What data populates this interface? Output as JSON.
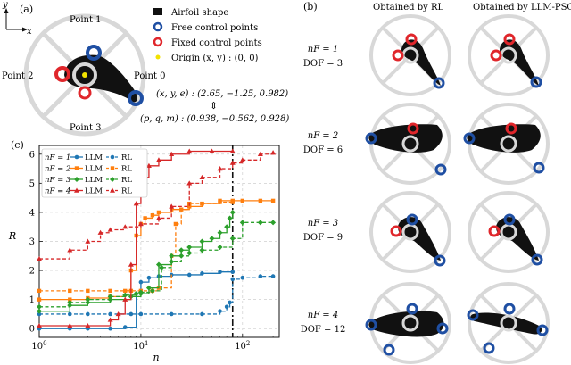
{
  "panels": {
    "a": {
      "label": "(a)",
      "axis_x": "x",
      "axis_y": "y",
      "points": [
        "Point 1",
        "Point 2",
        "Point 3",
        "Point 0"
      ],
      "legend": [
        {
          "label": "Airfoil shape",
          "marker": "square",
          "color": "#111111"
        },
        {
          "label": "Free control points",
          "marker": "ring",
          "color": "#1f4fa3"
        },
        {
          "label": "Fixed control points",
          "marker": "ring",
          "color": "#e0262b"
        },
        {
          "label": "Origin (x, y) : (0, 0)",
          "marker": "dot",
          "color": "#f2e200"
        }
      ],
      "eq_top": "(x, y, e) : (2.65, −1.25, 0.982)",
      "eq_arrow": "⇕",
      "eq_bottom": "(p, q, m) : (0.938, −0.562, 0.928)"
    },
    "b": {
      "label": "(b)",
      "col_rl": "Obtained by RL",
      "col_llm": "Obtained by LLM-PSO",
      "rows": [
        {
          "nf": "nF = 1",
          "dof": "DOF = 3"
        },
        {
          "nf": "nF = 2",
          "dof": "DOF = 6"
        },
        {
          "nf": "nF = 3",
          "dof": "DOF = 9"
        },
        {
          "nf": "nF = 4",
          "dof": "DOF = 12"
        }
      ]
    },
    "c": {
      "label": "(c)"
    }
  },
  "chart_data": {
    "type": "line",
    "xlabel": "n",
    "ylabel": "R",
    "xscale": "log",
    "xlim": [
      1,
      230
    ],
    "ylim": [
      -0.3,
      6.3
    ],
    "yticks": [
      0,
      1,
      2,
      3,
      4,
      5,
      6
    ],
    "xticks": [
      "10^0",
      "10^1",
      "10^2"
    ],
    "vline_x": 80,
    "grid": true,
    "legend_placement": "top-left",
    "series": [
      {
        "name": "nF = 1 · LLM",
        "color": "#1f77b4",
        "style": "solid",
        "marker": "circle",
        "x": [
          1,
          2,
          3,
          5,
          7,
          9,
          10,
          12,
          15,
          20,
          30,
          40,
          60,
          80
        ],
        "y": [
          0,
          0,
          0,
          0,
          0.05,
          1.2,
          1.6,
          1.75,
          1.8,
          1.85,
          1.85,
          1.9,
          1.95,
          1.95
        ]
      },
      {
        "name": "nF = 1 · RL",
        "color": "#1f77b4",
        "style": "dashed",
        "marker": "circle",
        "x": [
          1,
          2,
          3,
          5,
          8,
          10,
          20,
          40,
          60,
          70,
          75,
          80,
          100,
          150,
          200
        ],
        "y": [
          0.5,
          0.5,
          0.5,
          0.5,
          0.5,
          0.5,
          0.5,
          0.5,
          0.6,
          0.75,
          0.9,
          1.7,
          1.75,
          1.8,
          1.8
        ]
      },
      {
        "name": "nF = 2 · LLM",
        "color": "#ff7f0e",
        "style": "solid",
        "marker": "square",
        "x": [
          1,
          2,
          3,
          5,
          7,
          8,
          9,
          10,
          11,
          13,
          15,
          20,
          30,
          40,
          60,
          80,
          100,
          150,
          200
        ],
        "y": [
          1,
          1,
          1.05,
          1.1,
          1.3,
          2.0,
          3.2,
          3.6,
          3.8,
          3.9,
          4.0,
          4.1,
          4.2,
          4.3,
          4.4,
          4.4,
          4.4,
          4.4,
          4.4
        ]
      },
      {
        "name": "nF = 2 · RL",
        "color": "#ff7f0e",
        "style": "dashed",
        "marker": "square",
        "x": [
          1,
          2,
          3,
          5,
          8,
          10,
          13,
          15,
          20,
          22,
          25,
          30,
          40,
          60,
          80
        ],
        "y": [
          1.3,
          1.3,
          1.3,
          1.3,
          1.3,
          1.3,
          1.3,
          1.4,
          2.5,
          3.6,
          4.1,
          4.3,
          4.3,
          4.35,
          4.35
        ]
      },
      {
        "name": "nF = 3 · LLM",
        "color": "#2ca02c",
        "style": "solid",
        "marker": "diamond",
        "x": [
          1,
          2,
          3,
          5,
          8,
          10,
          12,
          15,
          20,
          25,
          30,
          40,
          50,
          60,
          70,
          75,
          80
        ],
        "y": [
          0.6,
          0.8,
          0.9,
          1.0,
          1.1,
          1.2,
          1.4,
          2.2,
          2.5,
          2.7,
          2.8,
          3.0,
          3.1,
          3.3,
          3.5,
          3.8,
          4.0
        ]
      },
      {
        "name": "nF = 3 · RL",
        "color": "#2ca02c",
        "style": "dashed",
        "marker": "diamond",
        "x": [
          1,
          2,
          3,
          5,
          7,
          9,
          10,
          13,
          16,
          20,
          25,
          30,
          40,
          60,
          80,
          100,
          150,
          200
        ],
        "y": [
          0.75,
          0.9,
          1.0,
          1.1,
          1.15,
          1.2,
          1.25,
          1.3,
          2.1,
          2.3,
          2.5,
          2.6,
          2.7,
          2.8,
          3.1,
          3.65,
          3.65,
          3.65
        ]
      },
      {
        "name": "nF = 4 · LLM",
        "color": "#d62728",
        "style": "solid",
        "marker": "triangle",
        "x": [
          1,
          2,
          3,
          5,
          6,
          7,
          8,
          9,
          10,
          12,
          15,
          20,
          30,
          50,
          80
        ],
        "y": [
          0.1,
          0.1,
          0.1,
          0.3,
          0.5,
          1.0,
          2.2,
          4.3,
          5.2,
          5.6,
          5.8,
          6.0,
          6.1,
          6.1,
          6.1
        ]
      },
      {
        "name": "nF = 4 · RL",
        "color": "#d62728",
        "style": "dashed",
        "marker": "triangle",
        "x": [
          1,
          2,
          3,
          4,
          5,
          7,
          10,
          15,
          20,
          30,
          40,
          60,
          80,
          100,
          150,
          200
        ],
        "y": [
          2.4,
          2.7,
          3.0,
          3.3,
          3.4,
          3.5,
          3.6,
          3.8,
          4.2,
          5.0,
          5.2,
          5.5,
          5.7,
          5.8,
          6.0,
          6.05
        ]
      }
    ]
  }
}
